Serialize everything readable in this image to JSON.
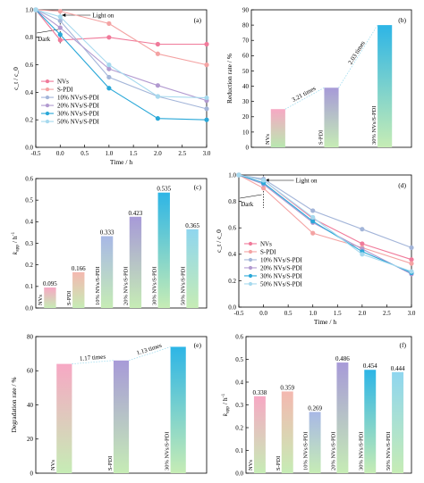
{
  "chart_data": [
    {
      "id": "a",
      "type": "line",
      "panel_label": "(a)",
      "xlabel": "Time / h",
      "ylabel": "c_t / c_0",
      "xlim": [
        -0.5,
        3.0
      ],
      "ylim": [
        0.0,
        1.0
      ],
      "xticks": [
        "-0.5",
        "0.0",
        "0.5",
        "1.0",
        "1.5",
        "2.0",
        "2.5",
        "3.0"
      ],
      "yticks": [
        "0.0",
        "0.2",
        "0.4",
        "0.6",
        "0.8",
        "1.0"
      ],
      "annotations": {
        "light": "Light on",
        "dark": "Dark"
      },
      "legend_position": "bottom-left",
      "series": [
        {
          "name": "NVs",
          "color": "#f07a9a",
          "marker": "circle",
          "x": [
            -0.5,
            0,
            1,
            2,
            3
          ],
          "y": [
            1.0,
            0.78,
            0.8,
            0.75,
            0.75
          ]
        },
        {
          "name": "S-PDI",
          "color": "#f4a3a3",
          "marker": "circle",
          "x": [
            -0.5,
            0,
            1,
            2,
            3
          ],
          "y": [
            1.0,
            0.99,
            0.9,
            0.68,
            0.6
          ]
        },
        {
          "name": "10% NVs/S-PDI",
          "color": "#a3b5d9",
          "marker": "circle",
          "x": [
            -0.5,
            0,
            1,
            2,
            3
          ],
          "y": [
            1.0,
            0.92,
            0.51,
            0.37,
            0.28
          ]
        },
        {
          "name": "20% NVs/S-PDI",
          "color": "#b29ad0",
          "marker": "circle",
          "x": [
            -0.5,
            0,
            1,
            2,
            3
          ],
          "y": [
            1.0,
            0.87,
            0.57,
            0.45,
            0.34
          ]
        },
        {
          "name": "30% NVs/S-PDI",
          "color": "#2aa8d8",
          "marker": "circle",
          "x": [
            -0.5,
            0,
            1,
            2,
            3
          ],
          "y": [
            1.0,
            0.82,
            0.43,
            0.21,
            0.2
          ]
        },
        {
          "name": "50% NVs/S-PDI",
          "color": "#a6d9ee",
          "marker": "circle",
          "x": [
            -0.5,
            0,
            1,
            2,
            3
          ],
          "y": [
            1.0,
            0.95,
            0.6,
            0.37,
            0.36
          ]
        }
      ]
    },
    {
      "id": "b",
      "type": "bar",
      "panel_label": "(b)",
      "ylabel": "Reduction rate / %",
      "ylim": [
        0,
        90
      ],
      "yticks": [
        "0",
        "10",
        "20",
        "30",
        "40",
        "50",
        "60",
        "70",
        "80",
        "90"
      ],
      "categories": [
        "NVs",
        "S-PDI",
        "30% NVs/S-PDI"
      ],
      "values": [
        25,
        39,
        80
      ],
      "colors": [
        [
          "#f7a8c4",
          "#b9e8b0"
        ],
        [
          "#a79ad8",
          "#c6ecb5"
        ],
        [
          "#2db5e6",
          "#c6ecb5"
        ]
      ],
      "annotations": [
        "3.21 times",
        "2.03 times"
      ]
    },
    {
      "id": "c",
      "type": "bar",
      "panel_label": "(c)",
      "ylabel": "k_app / h^-1",
      "ylim": [
        0.0,
        0.6
      ],
      "yticks": [
        "0.0",
        "0.1",
        "0.2",
        "0.3",
        "0.4",
        "0.5",
        "0.6"
      ],
      "categories": [
        "NVs",
        "S-PDI",
        "10% NVs/S-PDI",
        "20% NVs/S-PDI",
        "30% NVs/S-PDI",
        "50% NVs/S-PDI"
      ],
      "values": [
        0.095,
        0.166,
        0.333,
        0.423,
        0.535,
        0.365
      ],
      "labels": [
        "0.095",
        "0.166",
        "0.333",
        "0.423",
        "0.535",
        "0.365"
      ],
      "colors": [
        [
          "#f7a8c4",
          "#c6ecb5"
        ],
        [
          "#f4b8b0",
          "#c6ecb5"
        ],
        [
          "#a8b8e6",
          "#c6ecb5"
        ],
        [
          "#a79ad8",
          "#c6ecb5"
        ],
        [
          "#2db5e6",
          "#c6ecb5"
        ],
        [
          "#8fd6ef",
          "#c6ecb5"
        ]
      ]
    },
    {
      "id": "d",
      "type": "line",
      "panel_label": "(d)",
      "xlabel": "Time / h",
      "ylabel": "c_t / c_0",
      "xlim": [
        -0.5,
        3.0
      ],
      "ylim": [
        0.0,
        1.0
      ],
      "xticks": [
        "-0.5",
        "0.0",
        "0.5",
        "1.0",
        "1.5",
        "2.0",
        "2.5",
        "3.0"
      ],
      "yticks": [
        "0.0",
        "0.2",
        "0.4",
        "0.6",
        "0.8",
        "1.0"
      ],
      "annotations": {
        "light": "Light on",
        "dark": "Dark"
      },
      "legend_position": "bottom-left",
      "series": [
        {
          "name": "NVs",
          "color": "#f07a9a",
          "marker": "circle",
          "x": [
            -0.5,
            0,
            1,
            2,
            3
          ],
          "y": [
            1.0,
            0.96,
            0.67,
            0.48,
            0.36
          ]
        },
        {
          "name": "S-PDI",
          "color": "#f4a3a3",
          "marker": "circle",
          "x": [
            -0.5,
            0,
            1,
            2,
            3
          ],
          "y": [
            1.0,
            0.9,
            0.56,
            0.45,
            0.33
          ]
        },
        {
          "name": "10% NVs/S-PDI",
          "color": "#a3b5d9",
          "marker": "circle",
          "x": [
            -0.5,
            0,
            1,
            2,
            3
          ],
          "y": [
            1.0,
            0.97,
            0.73,
            0.59,
            0.45
          ]
        },
        {
          "name": "20% NVs/S-PDI",
          "color": "#b29ad0",
          "marker": "circle",
          "x": [
            -0.5,
            0,
            1,
            2,
            3
          ],
          "y": [
            1.0,
            0.93,
            0.64,
            0.44,
            0.25
          ]
        },
        {
          "name": "30% NVs/S-PDI",
          "color": "#2aa8d8",
          "marker": "circle",
          "x": [
            -0.5,
            0,
            1,
            2,
            3
          ],
          "y": [
            1.0,
            0.94,
            0.65,
            0.42,
            0.26
          ]
        },
        {
          "name": "50% NVs/S-PDI",
          "color": "#a6d9ee",
          "marker": "circle",
          "x": [
            -0.5,
            0,
            1,
            2,
            3
          ],
          "y": [
            1.0,
            0.96,
            0.68,
            0.4,
            0.27
          ]
        }
      ]
    },
    {
      "id": "e",
      "type": "bar",
      "panel_label": "(e)",
      "ylabel": "Degradation rate / %",
      "ylim": [
        0,
        80
      ],
      "yticks": [
        "0",
        "20",
        "40",
        "60",
        "80"
      ],
      "categories": [
        "NVs",
        "S-PDI",
        "30% NVs/S-PDI"
      ],
      "values": [
        64,
        66,
        74
      ],
      "colors": [
        [
          "#f7a8c4",
          "#c6ecb5"
        ],
        [
          "#a79ad8",
          "#c6ecb5"
        ],
        [
          "#2db5e6",
          "#c6ecb5"
        ]
      ],
      "annotations": [
        "1.17 times",
        "1.13 times"
      ]
    },
    {
      "id": "f",
      "type": "bar",
      "panel_label": "(f)",
      "ylabel": "k_app / h^-1",
      "ylim": [
        0.0,
        0.6
      ],
      "yticks": [
        "0.0",
        "0.1",
        "0.2",
        "0.3",
        "0.4",
        "0.5",
        "0.6"
      ],
      "categories": [
        "NVs",
        "S-PDI",
        "10% NVs/S-PDI",
        "20% NVs/S-PDI",
        "30% NVs/S-PDI",
        "50% NVs/S-PDI"
      ],
      "values": [
        0.338,
        0.359,
        0.269,
        0.486,
        0.454,
        0.444
      ],
      "labels": [
        "0.338",
        "0.359",
        "0.269",
        "0.486",
        "0.454",
        "0.444"
      ],
      "colors": [
        [
          "#f7a8c4",
          "#c6ecb5"
        ],
        [
          "#f4b8b0",
          "#c6ecb5"
        ],
        [
          "#a8b8e6",
          "#c6ecb5"
        ],
        [
          "#a79ad8",
          "#c6ecb5"
        ],
        [
          "#2db5e6",
          "#c6ecb5"
        ],
        [
          "#8fd6ef",
          "#c6ecb5"
        ]
      ]
    }
  ]
}
